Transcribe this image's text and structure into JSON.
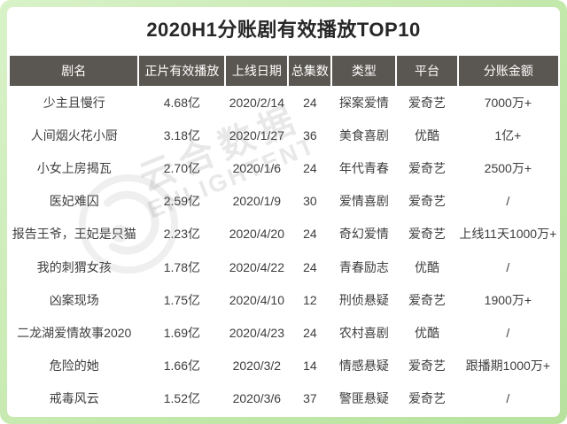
{
  "title": "2020H1分账剧有效播放TOP10",
  "watermark": {
    "cn": "云合数据",
    "en": "ENLIGHTENT"
  },
  "colors": {
    "frame_green": "#c3e8ab",
    "header_bg": "#5a5651",
    "header_text": "#ffffff",
    "body_text": "#3d3d3d"
  },
  "chart_data": {
    "type": "table",
    "title": "2020H1分账剧有效播放TOP10",
    "columns": [
      "剧名",
      "正片有效播放",
      "上线日期",
      "总集数",
      "类型",
      "平台",
      "分账金额"
    ],
    "column_keys": [
      "title",
      "views",
      "date",
      "episodes",
      "genre",
      "platform",
      "revenue"
    ],
    "rows": [
      [
        "少主且慢行",
        "4.68亿",
        "2020/2/14",
        "24",
        "探案爱情",
        "爱奇艺",
        "7000万+"
      ],
      [
        "人间烟火花小厨",
        "3.18亿",
        "2020/1/27",
        "36",
        "美食喜剧",
        "优酷",
        "1亿+"
      ],
      [
        "小女上房揭瓦",
        "2.70亿",
        "2020/1/6",
        "24",
        "年代青春",
        "爱奇艺",
        "2500万+"
      ],
      [
        "医妃难囚",
        "2.59亿",
        "2020/1/9",
        "30",
        "爱情喜剧",
        "爱奇艺",
        "/"
      ],
      [
        "报告王爷，王妃是只猫",
        "2.23亿",
        "2020/4/20",
        "24",
        "奇幻爱情",
        "爱奇艺",
        "上线11天1000万+"
      ],
      [
        "我的刺猬女孩",
        "1.78亿",
        "2020/4/22",
        "24",
        "青春励志",
        "优酷",
        "/"
      ],
      [
        "凶案现场",
        "1.75亿",
        "2020/4/10",
        "12",
        "刑侦悬疑",
        "爱奇艺",
        "1900万+"
      ],
      [
        "二龙湖爱情故事2020",
        "1.69亿",
        "2020/4/23",
        "24",
        "农村喜剧",
        "优酷",
        "/"
      ],
      [
        "危险的她",
        "1.66亿",
        "2020/3/2",
        "14",
        "情感悬疑",
        "爱奇艺",
        "跟播期1000万+"
      ],
      [
        "戒毒风云",
        "1.52亿",
        "2020/3/6",
        "37",
        "警匪悬疑",
        "爱奇艺",
        "/"
      ]
    ]
  }
}
